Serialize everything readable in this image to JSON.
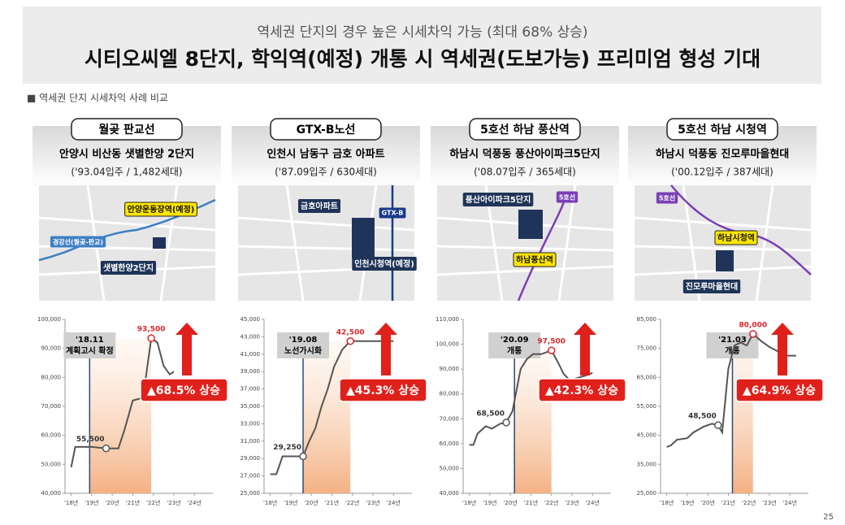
{
  "header": {
    "subtitle": "역세권 단지의 경우 높은 시세차익 가능 (최대 68% 상승)",
    "title": "시티오씨엘 8단지, 학익역(예정) 개통 시 역세권(도보가능) 프리미엄 형성 기대"
  },
  "section_label": "■ 역세권 단지 시세차익 사례 비교",
  "page_number": "25",
  "panels": [
    {
      "tag": "월곶 판교선",
      "complex": "안양시 비산동 샛별한양 2단지",
      "info": "('93.04입주 / 1,482세대)",
      "map_labels": [
        "안양운동장역(예정)",
        "경강선(월곶-판교)",
        "샛별한양2단지"
      ]
    },
    {
      "tag": "GTX-B노선",
      "complex": "인천시 남동구 금호 아파트",
      "info": "('87.09입주 / 630세대)",
      "map_labels": [
        "금호아파트",
        "GTX-B",
        "인천시청역(예정)"
      ]
    },
    {
      "tag": "5호선 하남 풍산역",
      "complex": "하남시 덕풍동 풍산아이파크5단지",
      "info": "('08.07입주 / 365세대)",
      "map_labels": [
        "풍산아이파크5단지",
        "5호선",
        "하남풍산역"
      ]
    },
    {
      "tag": "5호선 하남 시청역",
      "complex": "하남시 덕풍동 진모루마을현대",
      "info": "('00.12입주 / 387세대)",
      "map_labels": [
        "5호선",
        "하남시청역",
        "진모루마을현대"
      ]
    }
  ],
  "chart_data": [
    {
      "type": "line",
      "color": "#555555",
      "x": [
        2018.0,
        2018.2,
        2019.0,
        2019.7,
        2020.3,
        2020.6,
        2021.0,
        2021.5,
        2021.9,
        2022.2,
        2022.5,
        2022.8,
        2023.0
      ],
      "values": [
        49000,
        56000,
        56000,
        55500,
        55500,
        62000,
        72000,
        73000,
        93500,
        92000,
        84000,
        81000,
        82000
      ],
      "value_labels": [
        null,
        null,
        null,
        "55,500",
        null,
        null,
        null,
        null,
        "93,500",
        null,
        null,
        null,
        null
      ],
      "xlim": [
        2017.7,
        2024.9
      ],
      "xticks": [
        {
          "value": 2018,
          "label": "'18년"
        },
        {
          "value": 2019,
          "label": "'19년"
        },
        {
          "value": 2020,
          "label": "'20년"
        },
        {
          "value": 2021,
          "label": "'21년"
        },
        {
          "value": 2022,
          "label": "'22년"
        },
        {
          "value": 2023,
          "label": "'23년"
        },
        {
          "value": 2024,
          "label": "'24년"
        }
      ],
      "ylim": [
        40000,
        100000
      ],
      "yticks": [
        {
          "value": 40000,
          "label": "40,000"
        },
        {
          "value": 50000,
          "label": "50,000"
        },
        {
          "value": 60000,
          "label": "60,000"
        },
        {
          "value": 70000,
          "label": "70,000"
        },
        {
          "value": 80000,
          "label": "80,000"
        },
        {
          "value": 90000,
          "label": "90,000"
        },
        {
          "value": 100000,
          "label": "100,000"
        }
      ],
      "event": {
        "x": 2018.9,
        "label": [
          "'18.11",
          "계획고시 확정"
        ]
      },
      "rise_label": "▲68.5% 상승"
    },
    {
      "type": "line",
      "color": "#555555",
      "x": [
        2018.0,
        2018.3,
        2018.6,
        2019.6,
        2019.9,
        2020.2,
        2020.5,
        2020.8,
        2021.1,
        2021.5,
        2021.9,
        2022.5,
        2023.3,
        2024.0
      ],
      "values": [
        27200,
        27200,
        29250,
        29250,
        31000,
        32500,
        35000,
        37000,
        39500,
        41500,
        42500,
        42500,
        42500,
        42500
      ],
      "value_labels": [
        null,
        null,
        null,
        "29,250",
        null,
        null,
        null,
        null,
        null,
        null,
        "42,500",
        null,
        null,
        null
      ],
      "xlim": [
        2017.7,
        2024.9
      ],
      "xticks": [
        {
          "value": 2018,
          "label": "'18년"
        },
        {
          "value": 2019,
          "label": "'19년"
        },
        {
          "value": 2020,
          "label": "'20년"
        },
        {
          "value": 2021,
          "label": "'21년"
        },
        {
          "value": 2022,
          "label": "'22년"
        },
        {
          "value": 2023,
          "label": "'23년"
        },
        {
          "value": 2024,
          "label": "'24년"
        }
      ],
      "ylim": [
        25000,
        45000
      ],
      "yticks": [
        {
          "value": 25000,
          "label": "25,000"
        },
        {
          "value": 27000,
          "label": "27,000"
        },
        {
          "value": 29000,
          "label": "29,000"
        },
        {
          "value": 31000,
          "label": "31,000"
        },
        {
          "value": 33000,
          "label": "33,000"
        },
        {
          "value": 35000,
          "label": "35,000"
        },
        {
          "value": 37000,
          "label": "37,000"
        },
        {
          "value": 39000,
          "label": "39,000"
        },
        {
          "value": 41000,
          "label": "41,000"
        },
        {
          "value": 43000,
          "label": "43,000"
        },
        {
          "value": 45000,
          "label": "45,000"
        }
      ],
      "event": {
        "x": 2019.6,
        "label": [
          "'19.08",
          "노선가시화"
        ]
      },
      "rise_label": "▲45.3% 상승"
    },
    {
      "type": "line",
      "color": "#555555",
      "x": [
        2018.0,
        2018.2,
        2018.4,
        2018.8,
        2019.1,
        2019.5,
        2019.8,
        2020.1,
        2020.5,
        2020.8,
        2021.1,
        2021.5,
        2022.0,
        2022.3,
        2022.6,
        2022.9,
        2023.3,
        2023.7,
        2024.0
      ],
      "values": [
        59500,
        59500,
        64000,
        67000,
        66000,
        68000,
        68500,
        73000,
        90000,
        94000,
        96000,
        96000,
        97500,
        93000,
        88000,
        85500,
        86500,
        87500,
        88500
      ],
      "value_labels": [
        null,
        null,
        null,
        null,
        null,
        null,
        "68,500",
        null,
        null,
        null,
        null,
        null,
        "97,500",
        null,
        null,
        null,
        null,
        null,
        null
      ],
      "xlim": [
        2017.7,
        2024.9
      ],
      "xticks": [
        {
          "value": 2018,
          "label": "'18년"
        },
        {
          "value": 2019,
          "label": "'19년"
        },
        {
          "value": 2020,
          "label": "'20년"
        },
        {
          "value": 2021,
          "label": "'21년"
        },
        {
          "value": 2022,
          "label": "'22년"
        },
        {
          "value": 2023,
          "label": "'23년"
        },
        {
          "value": 2024,
          "label": "'24년"
        }
      ],
      "ylim": [
        40000,
        110000
      ],
      "yticks": [
        {
          "value": 40000,
          "label": "40,000"
        },
        {
          "value": 50000,
          "label": "50,000"
        },
        {
          "value": 60000,
          "label": "60,000"
        },
        {
          "value": 70000,
          "label": "70,000"
        },
        {
          "value": 80000,
          "label": "80,000"
        },
        {
          "value": 90000,
          "label": "90,000"
        },
        {
          "value": 100000,
          "label": "100,000"
        },
        {
          "value": 110000,
          "label": "110,000"
        }
      ],
      "event": {
        "x": 2020.2,
        "label": [
          "'20.09",
          "개통"
        ]
      },
      "rise_label": "▲42.3% 상승"
    },
    {
      "type": "line",
      "color": "#555555",
      "x": [
        2018.0,
        2018.2,
        2018.5,
        2019.0,
        2019.3,
        2019.8,
        2020.2,
        2020.5,
        2020.7,
        2021.0,
        2021.3,
        2021.6,
        2021.9,
        2022.2,
        2022.6,
        2023.0,
        2023.4,
        2023.7,
        2024.0,
        2024.3
      ],
      "values": [
        41000,
        41500,
        43500,
        44000,
        46000,
        48000,
        49000,
        48500,
        46000,
        68000,
        76000,
        77000,
        76000,
        80000,
        77500,
        75500,
        74000,
        72500,
        72500,
        72500
      ],
      "value_labels": [
        null,
        null,
        null,
        null,
        null,
        null,
        null,
        "48,500",
        null,
        null,
        null,
        null,
        null,
        "80,000",
        null,
        null,
        null,
        null,
        null,
        null
      ],
      "xlim": [
        2017.7,
        2024.9
      ],
      "xticks": [
        {
          "value": 2018,
          "label": "'18년"
        },
        {
          "value": 2019,
          "label": "'19년"
        },
        {
          "value": 2020,
          "label": "'20년"
        },
        {
          "value": 2021,
          "label": "'21년"
        },
        {
          "value": 2022,
          "label": "'22년"
        },
        {
          "value": 2023,
          "label": "'23년"
        },
        {
          "value": 2024,
          "label": "'24년"
        }
      ],
      "ylim": [
        25000,
        85000
      ],
      "yticks": [
        {
          "value": 25000,
          "label": "25,000"
        },
        {
          "value": 35000,
          "label": "35,000"
        },
        {
          "value": 45000,
          "label": "45,000"
        },
        {
          "value": 55000,
          "label": "55,000"
        },
        {
          "value": 65000,
          "label": "65,000"
        },
        {
          "value": 75000,
          "label": "75,000"
        },
        {
          "value": 85000,
          "label": "85,000"
        }
      ],
      "event": {
        "x": 2021.2,
        "label": [
          "'21.03",
          "개통"
        ]
      },
      "rise_label": "▲64.9% 상승"
    }
  ]
}
